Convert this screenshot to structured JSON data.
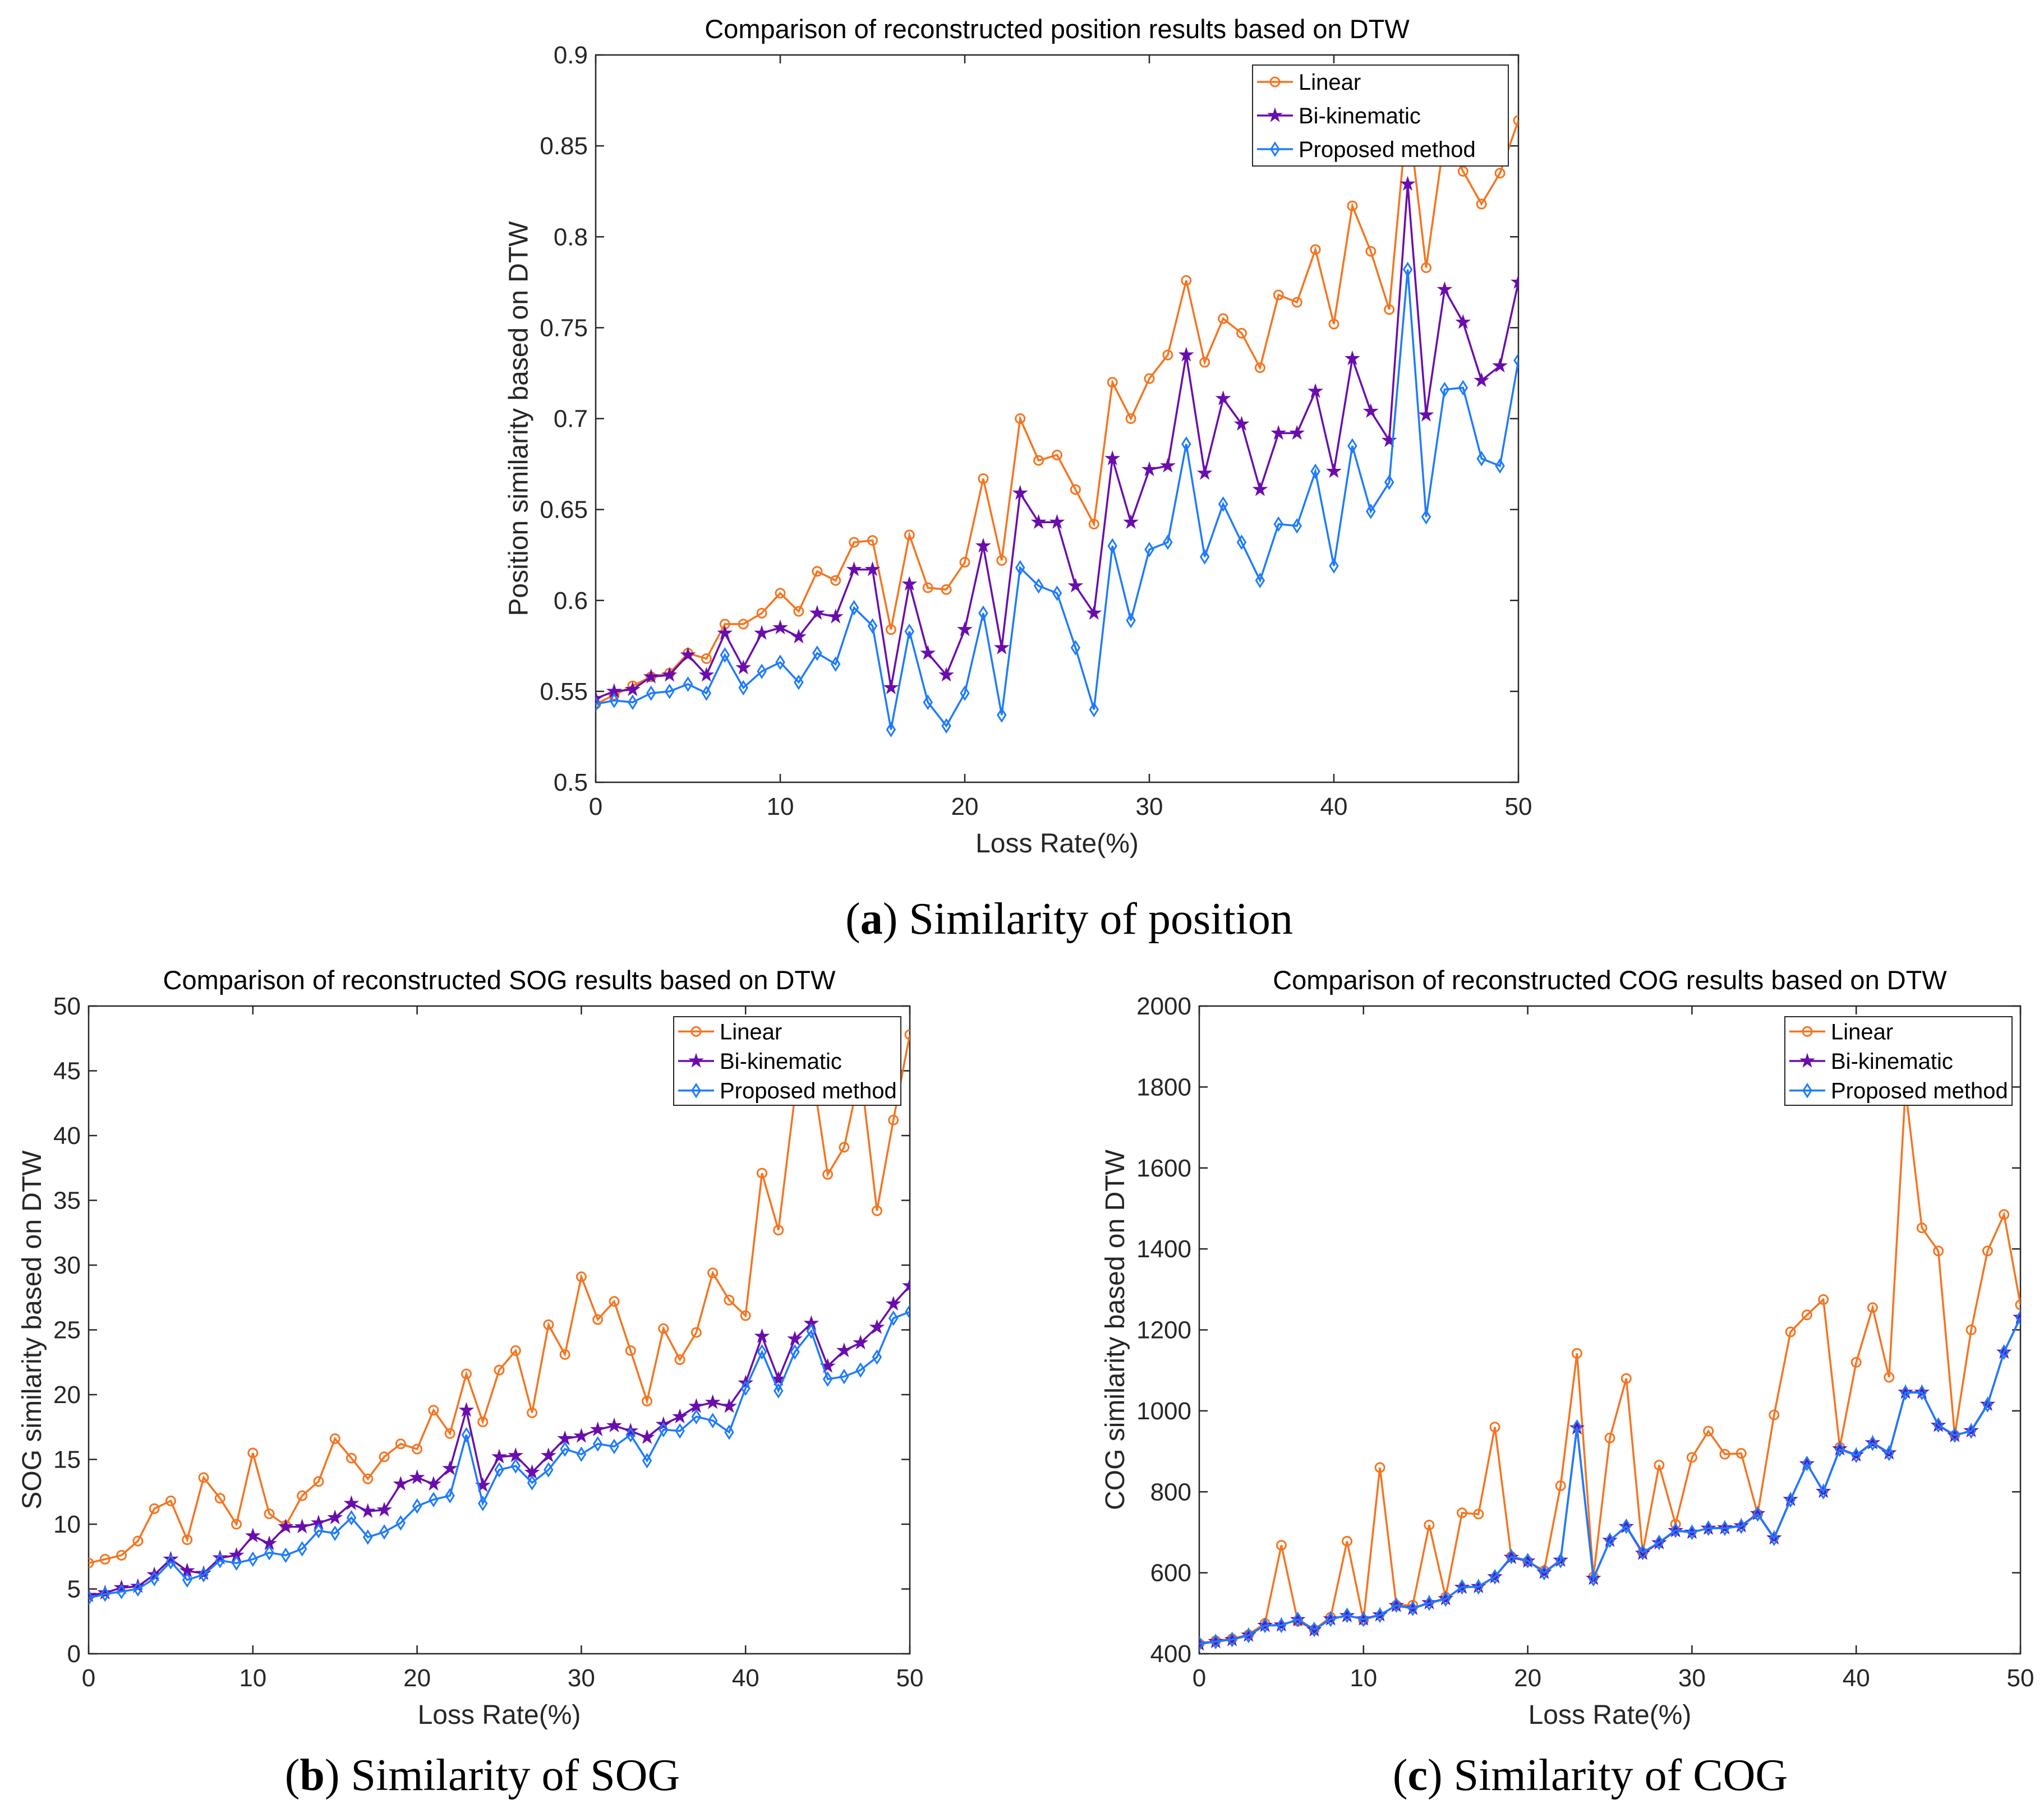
{
  "colors": {
    "Linear": "#f47521",
    "Bi-kinematic": "#6a0dad",
    "Proposed method": "#1e7bff"
  },
  "chart_data": [
    {
      "type": "line",
      "title": "Comparison of reconstructed position results based on DTW",
      "xlabel": "Loss Rate(%)",
      "ylabel": "Position similarity based on DTW",
      "xlim": [
        0,
        50
      ],
      "ylim": [
        0.5,
        0.9
      ],
      "xticks": [
        0,
        10,
        20,
        30,
        40,
        50
      ],
      "yticks": [
        0.5,
        0.55,
        0.6,
        0.65,
        0.7,
        0.75,
        0.8,
        0.85,
        0.9
      ],
      "legend": "top-right",
      "caption_label": "a",
      "caption_text": "Similarity of position",
      "series": [
        {
          "name": "Linear",
          "marker": "circle",
          "values": [
            0.543,
            0.548,
            0.553,
            0.558,
            0.56,
            0.571,
            0.568,
            0.587,
            0.587,
            0.593,
            0.604,
            0.594,
            0.616,
            0.611,
            0.632,
            0.633,
            0.584,
            0.636,
            0.607,
            0.606,
            0.621,
            0.667,
            0.622,
            0.7,
            0.677,
            0.68,
            0.661,
            0.642,
            0.72,
            0.7,
            0.722,
            0.735,
            0.776,
            0.731,
            0.755,
            0.747,
            0.728,
            0.768,
            0.764,
            0.793,
            0.752,
            0.817,
            0.792,
            0.76,
            0.87,
            0.783,
            0.855,
            0.836,
            0.818,
            0.835,
            0.864
          ]
        },
        {
          "name": "Bi-kinematic",
          "marker": "star",
          "values": [
            0.546,
            0.55,
            0.551,
            0.558,
            0.559,
            0.57,
            0.559,
            0.582,
            0.563,
            0.582,
            0.585,
            0.58,
            0.593,
            0.591,
            0.617,
            0.617,
            0.552,
            0.609,
            0.571,
            0.559,
            0.584,
            0.63,
            0.574,
            0.659,
            0.643,
            0.643,
            0.608,
            0.593,
            0.678,
            0.643,
            0.672,
            0.674,
            0.735,
            0.67,
            0.711,
            0.697,
            0.661,
            0.692,
            0.692,
            0.715,
            0.671,
            0.733,
            0.704,
            0.688,
            0.829,
            0.702,
            0.771,
            0.753,
            0.721,
            0.729,
            0.775
          ]
        },
        {
          "name": "Proposed method",
          "marker": "diamond",
          "values": [
            0.543,
            0.545,
            0.544,
            0.549,
            0.55,
            0.554,
            0.549,
            0.57,
            0.552,
            0.561,
            0.566,
            0.555,
            0.571,
            0.565,
            0.596,
            0.586,
            0.529,
            0.583,
            0.544,
            0.531,
            0.549,
            0.593,
            0.537,
            0.618,
            0.608,
            0.604,
            0.574,
            0.54,
            0.63,
            0.589,
            0.628,
            0.632,
            0.686,
            0.624,
            0.653,
            0.632,
            0.611,
            0.642,
            0.641,
            0.671,
            0.619,
            0.685,
            0.649,
            0.665,
            0.782,
            0.646,
            0.716,
            0.717,
            0.678,
            0.674,
            0.732
          ]
        }
      ]
    },
    {
      "type": "line",
      "title": "Comparison of reconstructed SOG results based on DTW",
      "xlabel": "Loss Rate(%)",
      "ylabel": "SOG similarity based on DTW",
      "xlim": [
        0,
        50
      ],
      "ylim": [
        0,
        50
      ],
      "xticks": [
        0,
        10,
        20,
        30,
        40,
        50
      ],
      "yticks": [
        0,
        5,
        10,
        15,
        20,
        25,
        30,
        35,
        40,
        45,
        50
      ],
      "legend": "top-right",
      "caption_label": "b",
      "caption_text": "Similarity of SOG",
      "series": [
        {
          "name": "Linear",
          "marker": "circle",
          "values": [
            7.0,
            7.3,
            7.6,
            8.7,
            11.2,
            11.8,
            8.8,
            13.6,
            12.0,
            10.0,
            15.5,
            10.8,
            9.9,
            12.2,
            13.3,
            16.6,
            15.1,
            13.5,
            15.2,
            16.2,
            15.8,
            18.8,
            17.0,
            21.6,
            17.9,
            21.9,
            23.4,
            18.6,
            25.4,
            23.1,
            29.1,
            25.8,
            27.2,
            23.4,
            19.5,
            25.1,
            22.7,
            24.8,
            29.4,
            27.3,
            26.1,
            37.1,
            32.7,
            43.0,
            45.5,
            37.0,
            39.1,
            45.0,
            34.2,
            41.2,
            47.8
          ]
        },
        {
          "name": "Bi-kinematic",
          "marker": "star",
          "values": [
            4.5,
            4.7,
            5.1,
            5.2,
            6.1,
            7.3,
            6.4,
            6.2,
            7.4,
            7.6,
            9.1,
            8.5,
            9.8,
            9.8,
            10.1,
            10.5,
            11.6,
            11.0,
            11.1,
            13.1,
            13.6,
            13.1,
            14.3,
            18.8,
            13.0,
            15.2,
            15.3,
            14.0,
            15.3,
            16.6,
            16.8,
            17.3,
            17.6,
            17.2,
            16.7,
            17.7,
            18.3,
            19.1,
            19.4,
            19.1,
            20.9,
            24.5,
            21.2,
            24.3,
            25.5,
            22.2,
            23.4,
            24.0,
            25.2,
            27.0,
            28.4
          ]
        },
        {
          "name": "Proposed method",
          "marker": "diamond",
          "values": [
            4.3,
            4.6,
            4.8,
            5.0,
            5.8,
            7.1,
            5.7,
            6.1,
            7.2,
            7.0,
            7.3,
            7.8,
            7.6,
            8.1,
            9.5,
            9.3,
            10.5,
            9.0,
            9.4,
            10.1,
            11.4,
            11.9,
            12.2,
            16.9,
            11.6,
            14.2,
            14.5,
            13.2,
            14.2,
            15.8,
            15.4,
            16.2,
            16.0,
            16.9,
            14.9,
            17.3,
            17.2,
            18.3,
            18.0,
            17.1,
            20.5,
            23.3,
            20.3,
            23.3,
            24.9,
            21.2,
            21.4,
            21.9,
            22.9,
            25.9,
            26.4
          ]
        }
      ]
    },
    {
      "type": "line",
      "title": "Comparison of reconstructed COG results based on DTW",
      "xlabel": "Loss Rate(%)",
      "ylabel": "COG similarity based on DTW",
      "xlim": [
        0,
        50
      ],
      "ylim": [
        400,
        2000
      ],
      "xticks": [
        0,
        10,
        20,
        30,
        40,
        50
      ],
      "yticks": [
        400,
        600,
        800,
        1000,
        1200,
        1400,
        1600,
        1800,
        2000
      ],
      "legend": "top-right",
      "caption_label": "c",
      "caption_text": "Similarity of COG",
      "series": [
        {
          "name": "Linear",
          "marker": "circle",
          "values": [
            425,
            432,
            437,
            447,
            475,
            668,
            480,
            460,
            490,
            678,
            483,
            860,
            520,
            520,
            718,
            540,
            748,
            745,
            960,
            640,
            628,
            605,
            815,
            1142,
            590,
            933,
            1080,
            650,
            866,
            720,
            885,
            950,
            893,
            895,
            745,
            990,
            1195,
            1237,
            1275,
            910,
            1120,
            1255,
            1083,
            1795,
            1452,
            1395,
            940,
            1200,
            1395,
            1485,
            1262
          ]
        },
        {
          "name": "Bi-kinematic",
          "marker": "star",
          "values": [
            424,
            430,
            435,
            446,
            470,
            471,
            484,
            459,
            486,
            494,
            486,
            496,
            519,
            512,
            526,
            536,
            564,
            566,
            590,
            638,
            629,
            601,
            631,
            958,
            586,
            680,
            714,
            648,
            674,
            704,
            700,
            710,
            711,
            716,
            746,
            686,
            781,
            869,
            801,
            906,
            891,
            921,
            896,
            1046,
            1046,
            964,
            939,
            951,
            1016,
            1145,
            1231
          ]
        },
        {
          "name": "Proposed method",
          "marker": "diamond",
          "values": [
            425,
            430,
            435,
            445,
            470,
            470,
            485,
            460,
            485,
            495,
            485,
            495,
            520,
            512,
            525,
            535,
            565,
            565,
            590,
            640,
            630,
            600,
            630,
            960,
            585,
            680,
            715,
            650,
            675,
            705,
            700,
            710,
            710,
            715,
            745,
            685,
            780,
            870,
            800,
            905,
            890,
            920,
            895,
            1045,
            1045,
            965,
            940,
            950,
            1015,
            1145,
            1230
          ]
        }
      ]
    }
  ]
}
